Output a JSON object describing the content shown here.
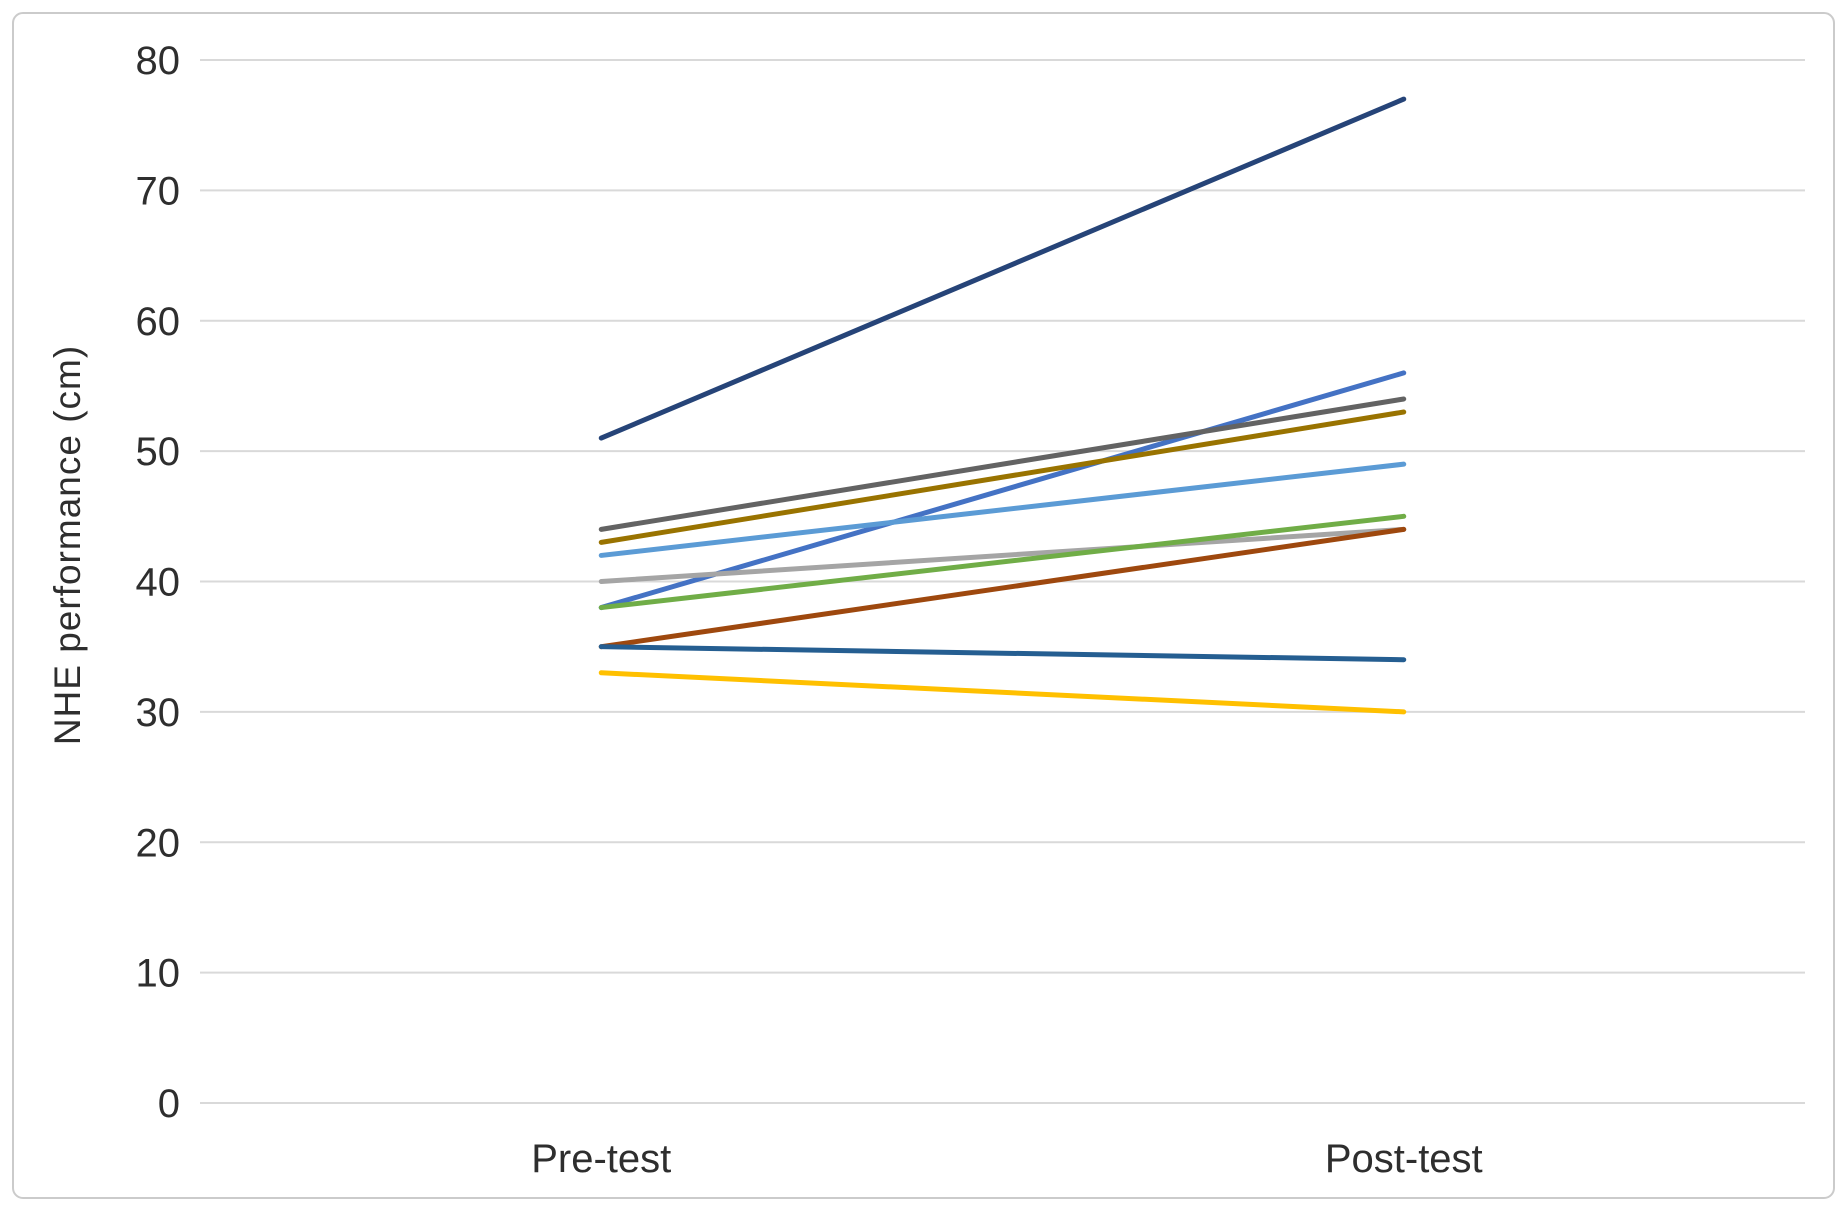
{
  "chart_data": {
    "type": "line",
    "subtype": "slope-chart-individual-responses",
    "title": "",
    "xlabel": "",
    "ylabel": "NHE performance (cm)",
    "categories": [
      "Pre-test",
      "Post-test"
    ],
    "ylim": [
      0,
      80
    ],
    "yticks": [
      0,
      10,
      20,
      30,
      40,
      50,
      60,
      70,
      80
    ],
    "grid": "horizontal",
    "legend_position": "none",
    "series": [
      {
        "name": "royal-blue-participant",
        "color": "#4472C4",
        "values": [
          38,
          56
        ]
      },
      {
        "name": "light-gray-participant",
        "color": "#A5A5A5",
        "values": [
          40,
          44
        ]
      },
      {
        "name": "yellow-participant",
        "color": "#FFC000",
        "values": [
          33,
          30
        ]
      },
      {
        "name": "light-blue-participant",
        "color": "#5B9BD5",
        "values": [
          42,
          49
        ]
      },
      {
        "name": "green-participant",
        "color": "#70AD47",
        "values": [
          38,
          45
        ]
      },
      {
        "name": "dark-navy-participant",
        "color": "#264478",
        "values": [
          51,
          77
        ]
      },
      {
        "name": "rust-orange-participant",
        "color": "#9E480E",
        "values": [
          35,
          44
        ]
      },
      {
        "name": "dark-gray-participant",
        "color": "#636363",
        "values": [
          44,
          54
        ]
      },
      {
        "name": "dark-gold-participant",
        "color": "#997300",
        "values": [
          43,
          53
        ]
      },
      {
        "name": "steel-blue-participant",
        "color": "#255E91",
        "values": [
          35,
          34
        ]
      }
    ],
    "colors": {
      "gridline": "#D9D9D9",
      "chart_border": "#CBCBCB",
      "axis_text": "#2E2E2E",
      "background": "#FFFFFF"
    }
  }
}
